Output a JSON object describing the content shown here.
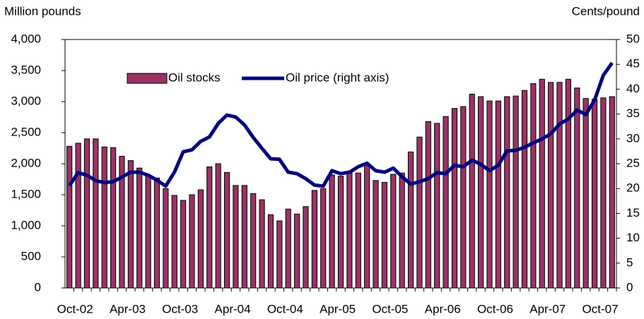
{
  "chart_data": {
    "type": "bar",
    "y_label": "Million pounds",
    "y2_label": "Cents/pound",
    "categories": [
      "Oct-02",
      null,
      null,
      null,
      null,
      null,
      "Apr-03",
      null,
      null,
      null,
      null,
      null,
      "Oct-03",
      null,
      null,
      null,
      null,
      null,
      "Apr-04",
      null,
      null,
      null,
      null,
      null,
      "Oct-04",
      null,
      null,
      null,
      null,
      null,
      "Apr-05",
      null,
      null,
      null,
      null,
      null,
      "Oct-05",
      null,
      null,
      null,
      null,
      null,
      "Apr-06",
      null,
      null,
      null,
      null,
      null,
      "Oct-06",
      null,
      null,
      null,
      null,
      null,
      "Apr-07",
      null,
      null,
      null,
      null,
      null,
      "Oct-07",
      null,
      null
    ],
    "series": [
      {
        "name": "Oil stocks",
        "type": "bar",
        "color": "#993366",
        "values": [
          2280,
          2330,
          2400,
          2400,
          2270,
          2260,
          2120,
          2050,
          1930,
          1800,
          1770,
          1600,
          1490,
          1410,
          1500,
          1580,
          1950,
          2000,
          1860,
          1650,
          1650,
          1520,
          1420,
          1180,
          1080,
          1270,
          1190,
          1310,
          1570,
          1600,
          1820,
          1800,
          1860,
          1850,
          1990,
          1730,
          1700,
          1830,
          1850,
          2190,
          2430,
          2680,
          2650,
          2760,
          2890,
          2920,
          3120,
          3080,
          3010,
          3010,
          3080,
          3090,
          3180,
          3290,
          3360,
          3310,
          3310,
          3360,
          3220,
          3050,
          3040,
          3060,
          3080
        ]
      },
      {
        "name": "Oil price (right axis)",
        "type": "line",
        "axis": "y2",
        "color": "#000080",
        "values": [
          20.6,
          23.2,
          22.7,
          21.6,
          21.2,
          21.4,
          22.3,
          23.3,
          23.3,
          22.7,
          21.7,
          20.5,
          23.3,
          27.4,
          27.8,
          29.5,
          30.4,
          33.1,
          34.8,
          34.4,
          32.8,
          30.3,
          28.1,
          26.0,
          25.9,
          23.3,
          23.0,
          22.0,
          20.7,
          20.5,
          23.6,
          23.0,
          23.3,
          24.4,
          25.1,
          23.6,
          23.3,
          24.1,
          22.4,
          20.9,
          21.4,
          22.0,
          23.2,
          23.0,
          24.7,
          24.4,
          25.7,
          24.9,
          23.6,
          24.7,
          27.6,
          27.7,
          28.3,
          29.2,
          30.0,
          31.0,
          33.0,
          34.0,
          35.8,
          34.9,
          37.8,
          42.8,
          45.3
        ]
      }
    ],
    "ylim": [
      0,
      4000
    ],
    "yticks": [
      0,
      500,
      {
        "value": 1000,
        "label": "1,000"
      },
      {
        "value": 1500,
        "label": "1,500"
      },
      {
        "value": 2000,
        "label": "2,000"
      },
      {
        "value": 2500,
        "label": "2,500"
      },
      {
        "value": 3000,
        "label": "3,000"
      },
      {
        "value": 3500,
        "label": "3,500"
      },
      {
        "value": 4000,
        "label": "4,000"
      }
    ],
    "y2lim": [
      0,
      50
    ],
    "y2ticks": [
      0,
      5,
      10,
      15,
      20,
      25,
      30,
      35,
      40,
      45,
      50
    ],
    "legend": "upper left"
  }
}
